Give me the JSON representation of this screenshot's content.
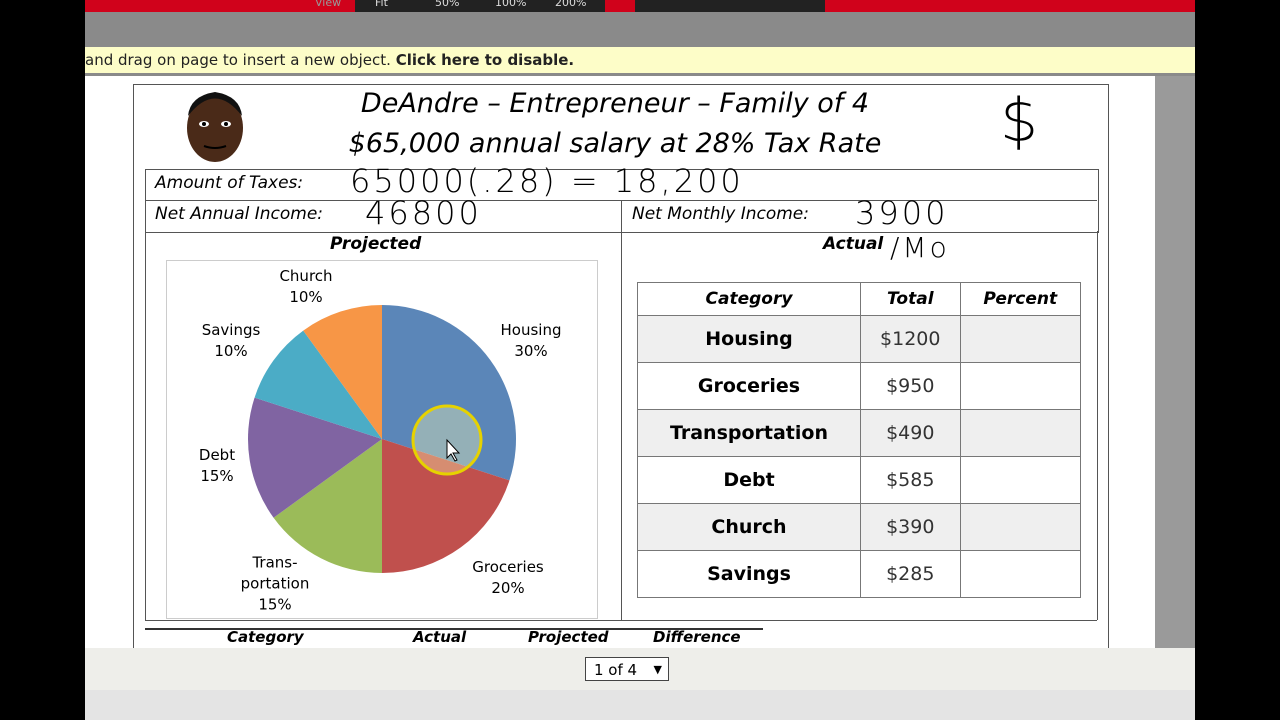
{
  "toolbar": {
    "view": "View",
    "zoom_options": [
      "Fit",
      "50%",
      "100%",
      "200%"
    ]
  },
  "banner": {
    "text": "and drag on page to insert a new object.",
    "link": "Click here to disable."
  },
  "worksheet": {
    "title": "DeAndre – Entrepreneur – Family of 4",
    "subtitle": "$65,000 annual salary at 28% Tax Rate",
    "symbol": "$",
    "taxes_label": "Amount of Taxes:",
    "taxes_handwritten": "65000(.28) = 18,200",
    "net_annual_label": "Net Annual Income:",
    "net_annual_handwritten": "46800",
    "net_monthly_label": "Net Monthly Income:",
    "net_monthly_handwritten": "3900",
    "projected_label": "Projected",
    "actual_label": "Actual",
    "actual_handwritten": "/Mo"
  },
  "chart_data": {
    "type": "pie",
    "categories": [
      "Housing",
      "Groceries",
      "Trans-\nportation",
      "Debt",
      "Savings",
      "Church"
    ],
    "values": [
      30,
      20,
      15,
      15,
      10,
      10
    ],
    "value_labels": [
      "30%",
      "20%",
      "15%",
      "15%",
      "10%",
      "10%"
    ],
    "colors": [
      "#5b86b8",
      "#c0504d",
      "#9bbb59",
      "#8064a2",
      "#4bacc6",
      "#f79646"
    ]
  },
  "table": {
    "headers": [
      "Category",
      "Total",
      "Percent"
    ],
    "rows": [
      [
        "Housing",
        "$1200"
      ],
      [
        "Groceries",
        "$950"
      ],
      [
        "Transportation",
        "$490"
      ],
      [
        "Debt",
        "$585"
      ],
      [
        "Church",
        "$390"
      ],
      [
        "Savings",
        "$285"
      ]
    ]
  },
  "bottom_headers": [
    "Category",
    "Actual",
    "Projected",
    "Difference"
  ],
  "pager": {
    "page": "1 of 4"
  }
}
